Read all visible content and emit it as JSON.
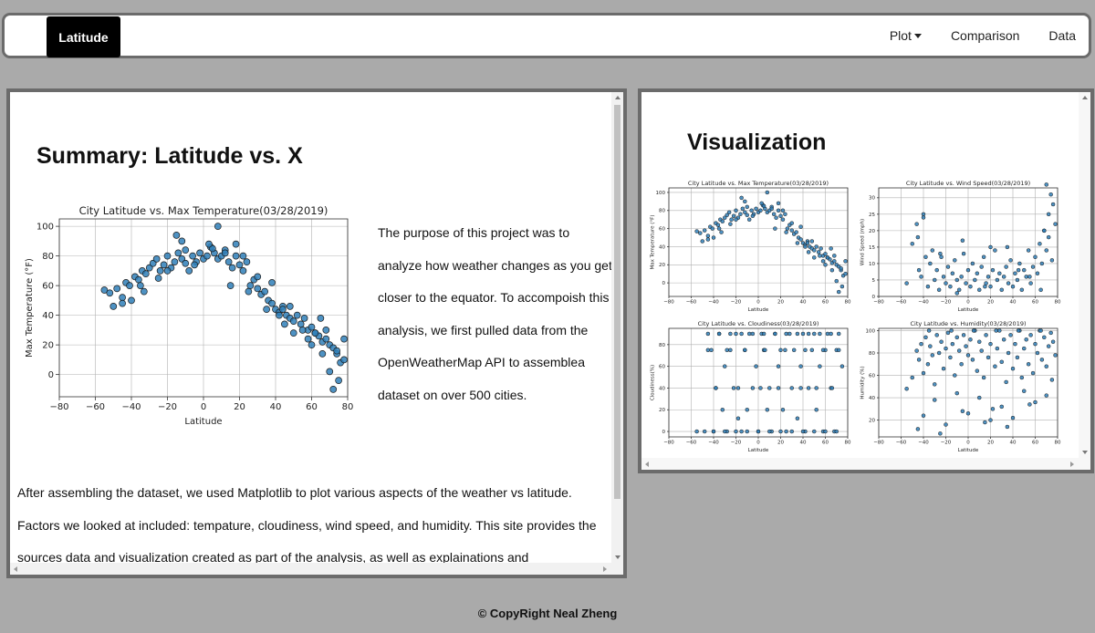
{
  "navbar": {
    "brand": "Latitude",
    "links": [
      "Plot",
      "Comparison",
      "Data"
    ]
  },
  "summary": {
    "heading": "Summary: Latitude vs. X",
    "description": "The purpose of this project was to analyze how weather changes as you get closer to the equator. To accompoish this analysis, we first pulled data from the OpenWeatherMap API to assemblea dataset on over 500 cities.",
    "paragraph": "After assembling the dataset, we used Matplotlib to plot various aspects of the weather vs latitude. Factors we looked at included: tempature, cloudiness, wind speed, and humidity. This site provides the sources data and visualization created as part of the analysis, as well as explainations and"
  },
  "visualization": {
    "heading": "Visualization"
  },
  "footer": {
    "text": "© CopyRight Neal Zheng"
  },
  "colors": {
    "marker": "#2f7fb8",
    "edge": "#1a1a1a",
    "panel_border": "#6b6b6b",
    "background": "#aaaaaa"
  },
  "chart_data": [
    {
      "type": "scatter",
      "title": "City Latitude vs. Max Temperature(03/28/2019)",
      "xlabel": "Latitude",
      "ylabel": "Max Temperature (°F)",
      "xlim": [
        -80,
        80
      ],
      "ylim": [
        -15,
        105
      ],
      "xticks": [
        -80,
        -60,
        -40,
        -20,
        0,
        20,
        40,
        60,
        80
      ],
      "yticks": [
        0,
        20,
        40,
        60,
        80,
        100
      ],
      "grid": true,
      "x": [
        -55,
        -52,
        -48,
        -45,
        -43,
        -41,
        -38,
        -36,
        -34,
        -32,
        -30,
        -28,
        -26,
        -24,
        -22,
        -20,
        -18,
        -16,
        -14,
        -12,
        -10,
        -8,
        -6,
        -4,
        -2,
        0,
        2,
        4,
        6,
        8,
        10,
        12,
        14,
        16,
        18,
        20,
        22,
        24,
        26,
        28,
        30,
        32,
        34,
        36,
        38,
        40,
        42,
        44,
        46,
        48,
        50,
        52,
        54,
        56,
        58,
        60,
        62,
        64,
        66,
        68,
        70,
        72,
        74,
        76,
        78,
        -40,
        -25,
        -10,
        5,
        15,
        25,
        35,
        45,
        55,
        65,
        70,
        72,
        -45,
        -33,
        -20,
        -12,
        3,
        12,
        30,
        42,
        50,
        60,
        66,
        75,
        -50,
        -15,
        8,
        18,
        38,
        48,
        58,
        68,
        78,
        -35,
        -5,
        22,
        44,
        62,
        74
      ],
      "y": [
        57,
        55,
        58,
        52,
        62,
        60,
        66,
        64,
        70,
        68,
        72,
        75,
        78,
        70,
        74,
        80,
        72,
        76,
        82,
        78,
        84,
        70,
        80,
        76,
        82,
        78,
        80,
        86,
        82,
        78,
        80,
        84,
        76,
        72,
        80,
        74,
        70,
        76,
        60,
        64,
        58,
        54,
        56,
        50,
        48,
        44,
        42,
        46,
        40,
        38,
        36,
        40,
        34,
        38,
        30,
        32,
        28,
        26,
        22,
        24,
        20,
        18,
        14,
        8,
        24,
        50,
        65,
        75,
        85,
        60,
        56,
        44,
        34,
        30,
        38,
        2,
        -10,
        48,
        56,
        70,
        90,
        88,
        82,
        66,
        40,
        28,
        20,
        14,
        -4,
        46,
        94,
        100,
        88,
        62,
        46,
        24,
        30,
        10,
        60,
        74,
        80,
        44,
        28,
        16
      ]
    },
    {
      "type": "scatter",
      "title": "City Latitude vs. Wind Speed(03/28/2019)",
      "xlabel": "Latitude",
      "ylabel": "Wind Speed (mph)",
      "xlim": [
        -80,
        80
      ],
      "ylim": [
        0,
        33
      ],
      "xticks": [
        -80,
        -60,
        -40,
        -20,
        0,
        20,
        40,
        60,
        80
      ],
      "yticks": [
        0,
        5,
        10,
        15,
        20,
        25,
        30
      ],
      "grid": true,
      "x": [
        -55,
        -50,
        -46,
        -44,
        -42,
        -40,
        -38,
        -36,
        -34,
        -32,
        -30,
        -28,
        -26,
        -24,
        -22,
        -20,
        -18,
        -16,
        -14,
        -12,
        -10,
        -8,
        -6,
        -4,
        -2,
        0,
        2,
        4,
        6,
        8,
        10,
        12,
        14,
        16,
        18,
        20,
        22,
        24,
        26,
        28,
        30,
        32,
        34,
        36,
        38,
        40,
        42,
        44,
        46,
        48,
        50,
        52,
        54,
        56,
        58,
        60,
        62,
        64,
        66,
        68,
        70,
        72,
        74,
        76,
        78,
        -45,
        -25,
        -5,
        15,
        35,
        55,
        65,
        70,
        72,
        75,
        -40,
        -10,
        20,
        45,
        68
      ],
      "y": [
        4,
        16,
        22,
        8,
        6,
        25,
        12,
        3,
        10,
        14,
        5,
        8,
        2,
        12,
        6,
        4,
        9,
        3,
        7,
        11,
        5,
        2,
        6,
        13,
        4,
        8,
        3,
        10,
        5,
        7,
        2,
        9,
        12,
        4,
        6,
        3,
        8,
        14,
        5,
        7,
        2,
        6,
        9,
        4,
        11,
        3,
        7,
        5,
        10,
        2,
        8,
        6,
        14,
        4,
        9,
        12,
        7,
        16,
        10,
        20,
        14,
        25,
        31,
        28,
        22,
        18,
        13,
        17,
        3,
        15,
        6,
        2,
        34,
        18,
        11,
        24,
        1,
        15,
        8,
        20
      ]
    },
    {
      "type": "scatter",
      "title": "City Latitude vs. Cloudiness(03/28/2019)",
      "xlabel": "Latitude",
      "ylabel": "Cloudiness(%)",
      "xlim": [
        -80,
        80
      ],
      "ylim": [
        -5,
        95
      ],
      "xticks": [
        -80,
        -60,
        -40,
        -20,
        0,
        20,
        40,
        60,
        80
      ],
      "yticks": [
        0,
        20,
        40,
        60,
        80
      ],
      "grid": true,
      "x": [
        -55,
        -48,
        -45,
        -42,
        -40,
        -38,
        -35,
        -32,
        -30,
        -28,
        -25,
        -22,
        -20,
        -18,
        -15,
        -12,
        -10,
        -8,
        -5,
        -2,
        0,
        3,
        5,
        8,
        10,
        12,
        15,
        18,
        20,
        22,
        25,
        28,
        30,
        32,
        35,
        38,
        40,
        42,
        45,
        48,
        50,
        52,
        55,
        58,
        60,
        62,
        65,
        68,
        70,
        72,
        75,
        -40,
        -30,
        -20,
        -10,
        0,
        10,
        20,
        30,
        40,
        50,
        60,
        70,
        -35,
        -25,
        -15,
        -5,
        5,
        15,
        25,
        35,
        45,
        55,
        65,
        -45,
        -28,
        -12,
        6,
        24,
        42,
        58,
        72,
        -38,
        -18,
        2,
        18,
        38,
        52,
        66
      ],
      "y": [
        0,
        0,
        90,
        75,
        0,
        40,
        90,
        20,
        60,
        0,
        75,
        40,
        90,
        12,
        0,
        75,
        20,
        90,
        40,
        60,
        0,
        90,
        75,
        20,
        40,
        0,
        90,
        60,
        75,
        20,
        0,
        90,
        40,
        75,
        12,
        60,
        90,
        0,
        40,
        75,
        90,
        20,
        60,
        0,
        75,
        90,
        40,
        0,
        75,
        90,
        60,
        0,
        0,
        0,
        0,
        0,
        0,
        0,
        0,
        0,
        0,
        0,
        0,
        90,
        90,
        90,
        90,
        90,
        90,
        90,
        90,
        90,
        90,
        90,
        75,
        75,
        75,
        75,
        75,
        75,
        75,
        75,
        40,
        40,
        40,
        40,
        40,
        40,
        40
      ]
    },
    {
      "type": "scatter",
      "title": "City Latitude vs. Humidity(03/28/2019)",
      "xlabel": "Latitude",
      "ylabel": "Humidity (%)",
      "xlim": [
        -80,
        80
      ],
      "ylim": [
        5,
        102
      ],
      "xticks": [
        -80,
        -60,
        -40,
        -20,
        0,
        20,
        40,
        60,
        80
      ],
      "yticks": [
        20,
        40,
        60,
        80,
        100
      ],
      "grid": true,
      "x": [
        -55,
        -50,
        -46,
        -44,
        -42,
        -40,
        -38,
        -36,
        -34,
        -32,
        -30,
        -28,
        -26,
        -24,
        -22,
        -20,
        -18,
        -16,
        -14,
        -12,
        -10,
        -8,
        -6,
        -4,
        -2,
        0,
        2,
        4,
        6,
        8,
        10,
        12,
        14,
        16,
        18,
        20,
        22,
        24,
        26,
        28,
        30,
        32,
        34,
        36,
        38,
        40,
        42,
        44,
        46,
        48,
        50,
        52,
        54,
        56,
        58,
        60,
        62,
        64,
        66,
        68,
        70,
        72,
        74,
        76,
        78,
        -40,
        -30,
        -20,
        -10,
        0,
        10,
        20,
        30,
        40,
        50,
        60,
        70,
        -35,
        -15,
        5,
        25,
        45,
        65,
        -45,
        -25,
        -5,
        15,
        35,
        55,
        75
      ],
      "y": [
        48,
        58,
        82,
        74,
        88,
        62,
        94,
        70,
        86,
        78,
        52,
        96,
        80,
        90,
        66,
        84,
        98,
        76,
        88,
        60,
        94,
        82,
        70,
        96,
        86,
        78,
        92,
        74,
        100,
        64,
        90,
        82,
        58,
        96,
        76,
        88,
        30,
        68,
        84,
        100,
        72,
        92,
        54,
        80,
        96,
        66,
        88,
        76,
        100,
        58,
        84,
        92,
        70,
        96,
        62,
        88,
        80,
        100,
        74,
        94,
        68,
        86,
        98,
        90,
        78,
        24,
        38,
        16,
        44,
        26,
        40,
        20,
        32,
        22,
        46,
        36,
        42,
        100,
        100,
        100,
        100,
        100,
        100,
        12,
        8,
        28,
        18,
        14,
        34,
        56
      ]
    }
  ]
}
